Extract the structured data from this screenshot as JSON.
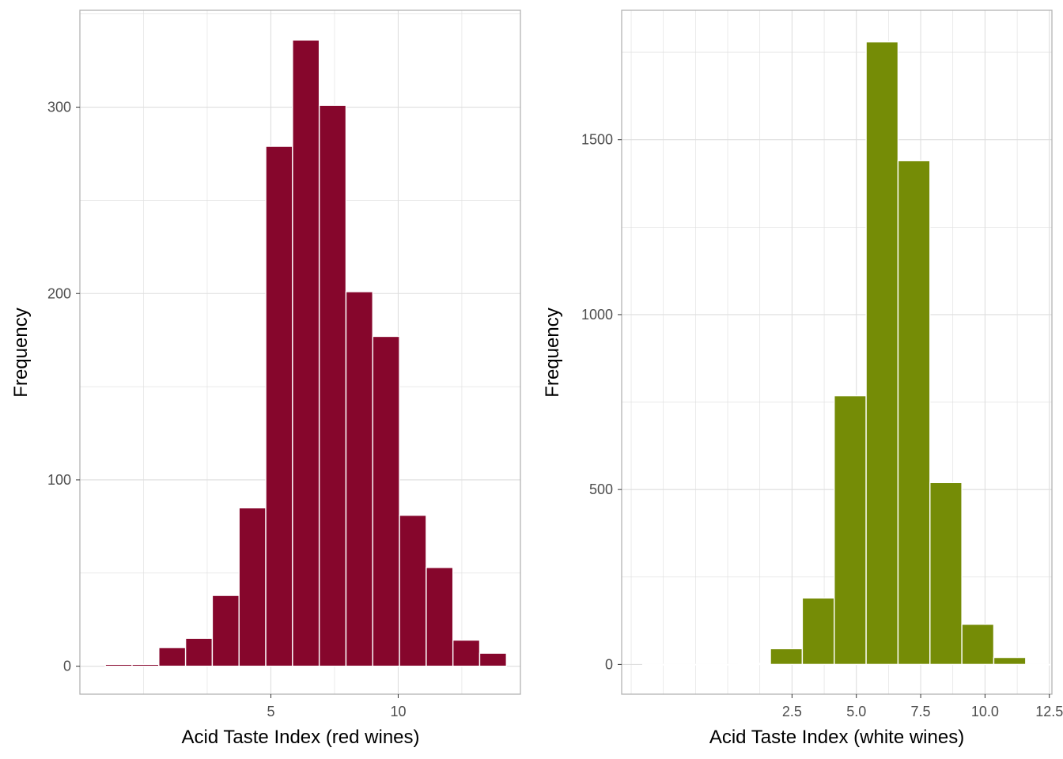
{
  "chart_data": [
    {
      "type": "bar",
      "xlabel": "Acid Taste Index (red wines)",
      "ylabel": "Frequency",
      "fill": "#86062c",
      "xlim": [
        -2.5,
        14.8
      ],
      "ylim": [
        -15,
        352
      ],
      "x_ticks": [
        5,
        10
      ],
      "x_tick_labels": [
        "5",
        "10"
      ],
      "y_ticks": [
        0,
        100,
        200,
        300
      ],
      "y_tick_labels": [
        "0",
        "100",
        "200",
        "300"
      ],
      "grid": true,
      "bins": [
        {
          "x0": -1.5,
          "x1": -0.45,
          "count": 1
        },
        {
          "x0": -0.45,
          "x1": 0.6,
          "count": 1
        },
        {
          "x0": 0.6,
          "x1": 1.65,
          "count": 10
        },
        {
          "x0": 1.65,
          "x1": 2.7,
          "count": 15
        },
        {
          "x0": 2.7,
          "x1": 3.75,
          "count": 38
        },
        {
          "x0": 3.75,
          "x1": 4.8,
          "count": 85
        },
        {
          "x0": 4.8,
          "x1": 5.85,
          "count": 279
        },
        {
          "x0": 5.85,
          "x1": 6.9,
          "count": 336
        },
        {
          "x0": 6.9,
          "x1": 7.95,
          "count": 301
        },
        {
          "x0": 7.95,
          "x1": 9.0,
          "count": 201
        },
        {
          "x0": 9.0,
          "x1": 10.05,
          "count": 177
        },
        {
          "x0": 10.05,
          "x1": 11.1,
          "count": 81
        },
        {
          "x0": 11.1,
          "x1": 12.15,
          "count": 53
        },
        {
          "x0": 12.15,
          "x1": 13.2,
          "count": 14
        },
        {
          "x0": 13.2,
          "x1": 14.25,
          "count": 7
        }
      ]
    },
    {
      "type": "bar",
      "xlabel": "Acid Taste Index (white wines)",
      "ylabel": "Frequency",
      "fill": "#758c06",
      "xlim": [
        -4.12,
        12.6
      ],
      "ylim": [
        -85,
        1870
      ],
      "x_ticks": [
        2.5,
        5.0,
        7.5,
        10.0,
        12.5
      ],
      "x_tick_labels": [
        "2.5",
        "5.0",
        "7.5",
        "10.0",
        "12.5"
      ],
      "y_ticks": [
        0,
        500,
        1000,
        1500
      ],
      "y_tick_labels": [
        "0",
        "500",
        "1000",
        "1500"
      ],
      "grid": true,
      "bins": [
        {
          "x0": -3.3,
          "x1": -2.06,
          "count": 0
        },
        {
          "x0": -2.06,
          "x1": -0.82,
          "count": 0
        },
        {
          "x0": -0.82,
          "x1": 0.42,
          "count": 0
        },
        {
          "x0": 0.42,
          "x1": 1.66,
          "count": 3
        },
        {
          "x0": 1.66,
          "x1": 2.9,
          "count": 45
        },
        {
          "x0": 2.9,
          "x1": 4.14,
          "count": 190
        },
        {
          "x0": 4.14,
          "x1": 5.38,
          "count": 768
        },
        {
          "x0": 5.38,
          "x1": 6.62,
          "count": 1780
        },
        {
          "x0": 6.62,
          "x1": 7.86,
          "count": 1440
        },
        {
          "x0": 7.86,
          "x1": 9.1,
          "count": 520
        },
        {
          "x0": 9.1,
          "x1": 10.34,
          "count": 115
        },
        {
          "x0": 10.34,
          "x1": 11.58,
          "count": 20
        },
        {
          "x0": 11.58,
          "x1": 12.82,
          "count": 0
        }
      ]
    }
  ]
}
